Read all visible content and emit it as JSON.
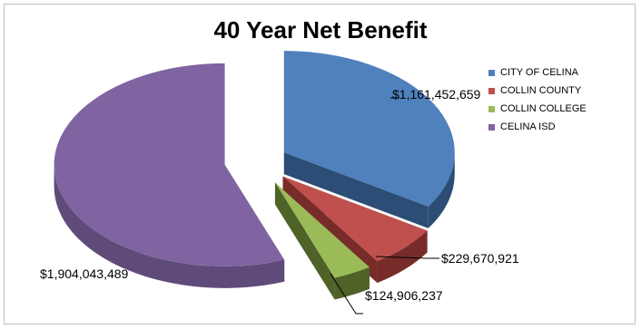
{
  "chart_data": {
    "type": "pie",
    "title": "40 Year Net Benefit",
    "legend_position": "right",
    "exploded": true,
    "three_d": true,
    "slices": [
      {
        "name": "CITY OF CELINA",
        "value": 1161452659,
        "label": "$1,161,452,659",
        "color": "#4f81bd",
        "dark": "#2c4d75"
      },
      {
        "name": "COLLIN COUNTY",
        "value": 229670921,
        "label": "$229,670,921",
        "color": "#c0504d",
        "dark": "#772c2a"
      },
      {
        "name": "COLLIN COLLEGE",
        "value": 124906237,
        "label": "$124,906,237",
        "color": "#9bbb59",
        "dark": "#4f6228"
      },
      {
        "name": "CELINA ISD",
        "value": 1904043489,
        "label": "$1,904,043,489",
        "color": "#8064a2",
        "dark": "#5f4b79"
      }
    ]
  }
}
